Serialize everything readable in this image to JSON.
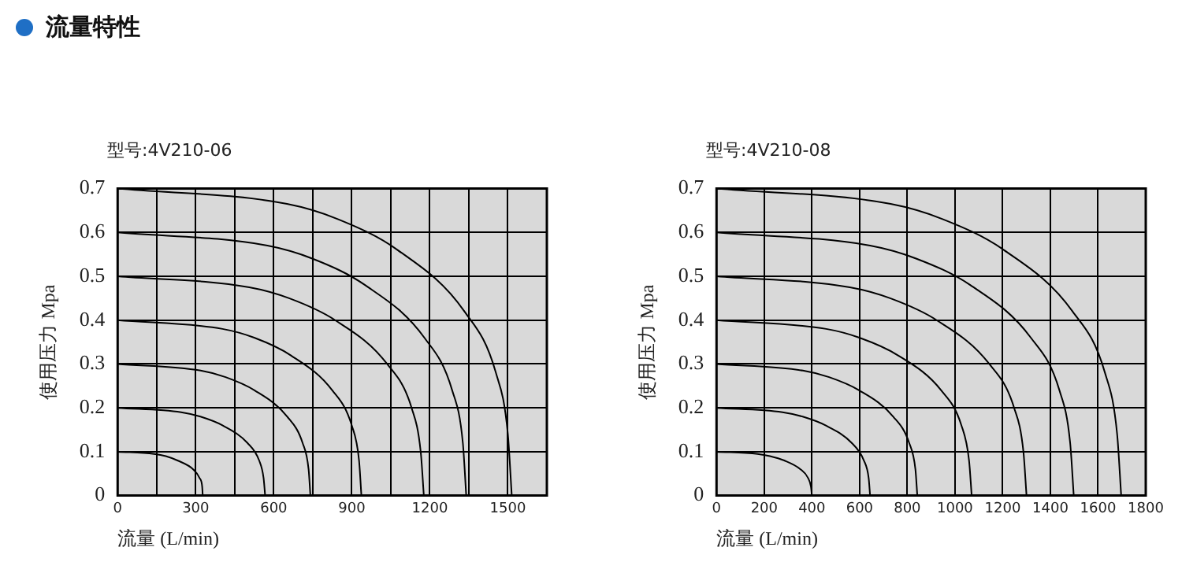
{
  "chart_data": [
    {
      "type": "line",
      "title": "流量特性",
      "subtitle": "型号:4V210-06",
      "xlabel": "流量 (L/min)",
      "ylabel": "使用压力 Mpa",
      "xlim": [
        0,
        1650
      ],
      "ylim": [
        0,
        0.7
      ],
      "xticks": [
        0,
        {
          "value": 150,
          "label": null
        },
        300,
        {
          "value": 450,
          "label": null
        },
        600,
        {
          "value": 750,
          "label": null
        },
        900,
        {
          "value": 1050,
          "label": null
        },
        1200,
        {
          "value": 1350,
          "label": null
        },
        1500,
        {
          "value": 1650,
          "label": null
        }
      ],
      "yticks": [
        0,
        0.1,
        0.2,
        0.3,
        0.4,
        0.5,
        0.6,
        0.7
      ],
      "grid": true,
      "legend": false,
      "marker": "none",
      "line_style": "solid",
      "series": [
        {
          "type": "line",
          "color": "#000000",
          "x": [
            0,
            140,
            185,
            230,
            290,
            315,
            325,
            327
          ],
          "values": [
            0.1,
            0.095,
            0.09,
            0.08,
            0.06,
            0.04,
            0.02,
            0
          ]
        },
        {
          "type": "line",
          "color": "#000000",
          "x": [
            0,
            244,
            318,
            403,
            499,
            544,
            561,
            567
          ],
          "values": [
            0.2,
            0.19,
            0.18,
            0.16,
            0.12,
            0.08,
            0.04,
            0
          ]
        },
        {
          "type": "line",
          "color": "#000000",
          "x": [
            0,
            319,
            415,
            526,
            652,
            711,
            734,
            741
          ],
          "values": [
            0.3,
            0.285,
            0.27,
            0.24,
            0.18,
            0.12,
            0.06,
            0
          ]
        },
        {
          "type": "line",
          "color": "#000000",
          "x": [
            0,
            403,
            525,
            665,
            825,
            900,
            928,
            937
          ],
          "values": [
            0.4,
            0.38,
            0.36,
            0.32,
            0.24,
            0.16,
            0.08,
            0
          ]
        },
        {
          "type": "line",
          "color": "#000000",
          "x": [
            0,
            506,
            659,
            836,
            1036,
            1130,
            1165,
            1177
          ],
          "values": [
            0.5,
            0.475,
            0.45,
            0.4,
            0.3,
            0.2,
            0.1,
            0
          ]
        },
        {
          "type": "line",
          "color": "#000000",
          "x": [
            0,
            576,
            750,
            951,
            1179,
            1286,
            1327,
            1340
          ],
          "values": [
            0.6,
            0.57,
            0.54,
            0.48,
            0.36,
            0.24,
            0.12,
            0
          ]
        },
        {
          "type": "line",
          "color": "#000000",
          "x": [
            0,
            651,
            848,
            1076,
            1333,
            1454,
            1500,
            1515
          ],
          "values": [
            0.7,
            0.665,
            0.63,
            0.56,
            0.42,
            0.28,
            0.14,
            0
          ]
        }
      ]
    },
    {
      "type": "line",
      "subtitle": "型号:4V210-08",
      "xlabel": "流量 (L/min)",
      "ylabel": "使用压力 Mpa",
      "xlim": [
        0,
        1800
      ],
      "ylim": [
        0,
        0.7
      ],
      "xticks": [
        0,
        200,
        400,
        600,
        800,
        1000,
        1200,
        1400,
        1600,
        1800
      ],
      "yticks": [
        0,
        0.1,
        0.2,
        0.3,
        0.4,
        0.5,
        0.6,
        0.7
      ],
      "grid": true,
      "legend": false,
      "marker": "none",
      "line_style": "solid",
      "series": [
        {
          "type": "line",
          "color": "#000000",
          "x": [
            0,
            172,
            224,
            284,
            352,
            384,
            396,
            400
          ],
          "values": [
            0.1,
            0.095,
            0.09,
            0.08,
            0.06,
            0.04,
            0.02,
            0
          ]
        },
        {
          "type": "line",
          "color": "#000000",
          "x": [
            0,
            277,
            361,
            457,
            567,
            618,
            638,
            644
          ],
          "values": [
            0.2,
            0.19,
            0.18,
            0.16,
            0.12,
            0.08,
            0.04,
            0
          ]
        },
        {
          "type": "line",
          "color": "#000000",
          "x": [
            0,
            362,
            472,
            598,
            741,
            808,
            834,
            842
          ],
          "values": [
            0.3,
            0.285,
            0.27,
            0.24,
            0.18,
            0.12,
            0.06,
            0
          ]
        },
        {
          "type": "line",
          "color": "#000000",
          "x": [
            0,
            460,
            599,
            760,
            942,
            1027,
            1059,
            1070
          ],
          "values": [
            0.4,
            0.38,
            0.36,
            0.32,
            0.24,
            0.16,
            0.08,
            0
          ]
        },
        {
          "type": "line",
          "color": "#000000",
          "x": [
            0,
            559,
            728,
            923,
            1144,
            1248,
            1287,
            1300
          ],
          "values": [
            0.5,
            0.475,
            0.45,
            0.4,
            0.3,
            0.2,
            0.1,
            0
          ]
        },
        {
          "type": "line",
          "color": "#000000",
          "x": [
            0,
            644,
            839,
            1064,
            1318,
            1438,
            1483,
            1498
          ],
          "values": [
            0.6,
            0.57,
            0.54,
            0.48,
            0.36,
            0.24,
            0.12,
            0
          ]
        },
        {
          "type": "line",
          "color": "#000000",
          "x": [
            0,
            730,
            950,
            1205,
            1493,
            1629,
            1680,
            1697
          ],
          "values": [
            0.7,
            0.665,
            0.63,
            0.56,
            0.42,
            0.28,
            0.14,
            0
          ]
        }
      ]
    }
  ]
}
